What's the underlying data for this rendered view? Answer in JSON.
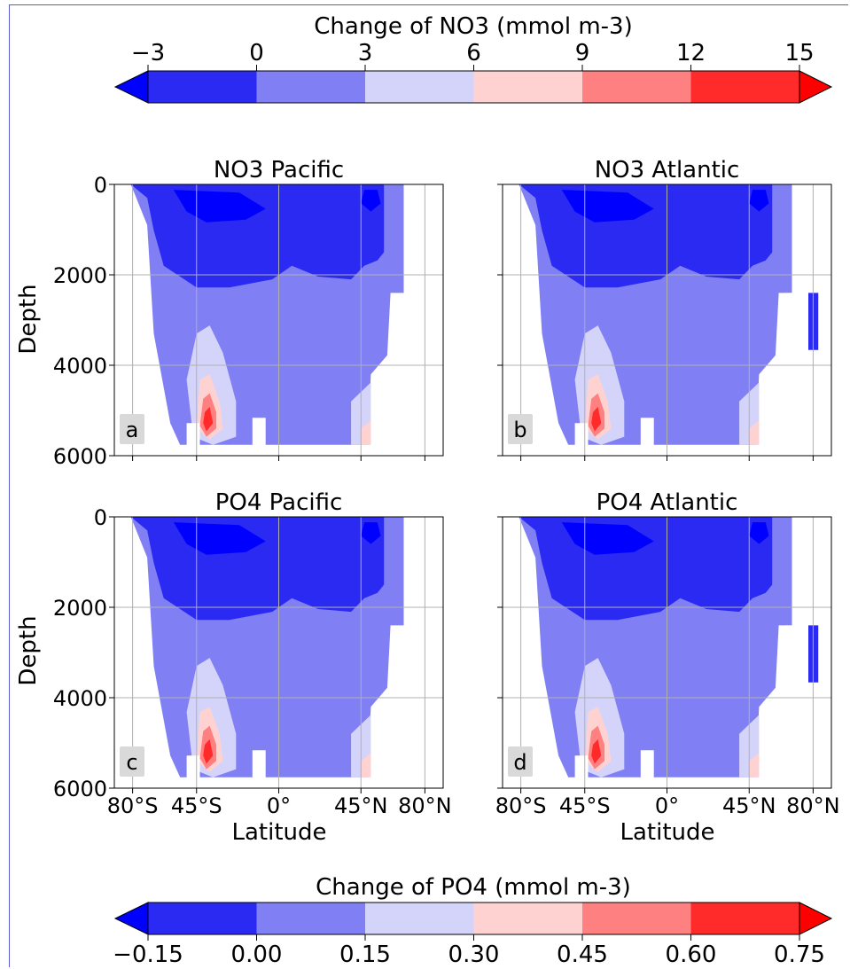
{
  "colors": {
    "levels": [
      "#0000ff",
      "#2a2af3",
      "#8080f4",
      "#d4d4fa",
      "#ffd2d2",
      "#ff8080",
      "#ff2b2b",
      "#ff0000"
    ],
    "grid": "#b0b0b0",
    "label_box": "#d9d9d9",
    "frame": "#5a5ad6"
  },
  "colorbars": {
    "no3": {
      "title": "Change of NO3 (mmol m-3)",
      "ticks": [
        "−3",
        "0",
        "3",
        "6",
        "9",
        "12",
        "15"
      ],
      "values": [
        -3,
        0,
        3,
        6,
        9,
        12,
        15
      ],
      "tick_position": "top",
      "extend": "both"
    },
    "po4": {
      "title": "Change of PO4 (mmol m-3)",
      "ticks": [
        "−0.15",
        "0.00",
        "0.15",
        "0.30",
        "0.45",
        "0.60",
        "0.75"
      ],
      "values": [
        -0.15,
        0.0,
        0.15,
        0.3,
        0.45,
        0.6,
        0.75
      ],
      "tick_position": "bottom",
      "extend": "both"
    }
  },
  "axes": {
    "ylabel": "Depth",
    "xlabel": "Latitude",
    "yticks": [
      "0",
      "2000",
      "4000",
      "6000"
    ],
    "xticks": [
      "80°S",
      "45°S",
      "0°",
      "45°N",
      "80°N"
    ]
  },
  "panels": [
    {
      "id": "a",
      "title": "NO3 Pacific",
      "letter": "a"
    },
    {
      "id": "b",
      "title": "NO3 Atlantic",
      "letter": "b"
    },
    {
      "id": "c",
      "title": "PO4 Pacific",
      "letter": "c"
    },
    {
      "id": "d",
      "title": "PO4 Atlantic",
      "letter": "d"
    }
  ],
  "chart_data": {
    "type": "heatmap",
    "rows": 2,
    "cols": 2,
    "xlabel": "Latitude",
    "ylabel": "Depth",
    "x_ticks": [
      -80,
      -45,
      0,
      45,
      80
    ],
    "x_tick_labels": [
      "80°S",
      "45°S",
      "0°",
      "45°N",
      "80°N"
    ],
    "xlim": [
      -90,
      90
    ],
    "ylim": [
      6000,
      0
    ],
    "y_ticks": [
      0,
      2000,
      4000,
      6000
    ],
    "grid": true,
    "contour_levels_no3": [
      -3,
      0,
      3,
      6,
      9,
      12,
      15
    ],
    "contour_levels_po4": [
      -0.15,
      0.0,
      0.15,
      0.3,
      0.45,
      0.6,
      0.75
    ],
    "panels": [
      {
        "label": "a",
        "title": "NO3 Pacific",
        "colorbar": "no3",
        "max_change_near": {
          "lat": -45,
          "depth": 5000,
          "value": 12
        }
      },
      {
        "label": "b",
        "title": "NO3 Atlantic",
        "colorbar": "no3",
        "max_change_near": {
          "lat": -45,
          "depth": 5000,
          "value": 12
        }
      },
      {
        "label": "c",
        "title": "PO4 Pacific",
        "colorbar": "po4",
        "max_change_near": {
          "lat": -45,
          "depth": 5000,
          "value": 0.6
        }
      },
      {
        "label": "d",
        "title": "PO4 Atlantic",
        "colorbar": "po4",
        "max_change_near": {
          "lat": -45,
          "depth": 5000,
          "value": 0.6
        }
      }
    ]
  }
}
